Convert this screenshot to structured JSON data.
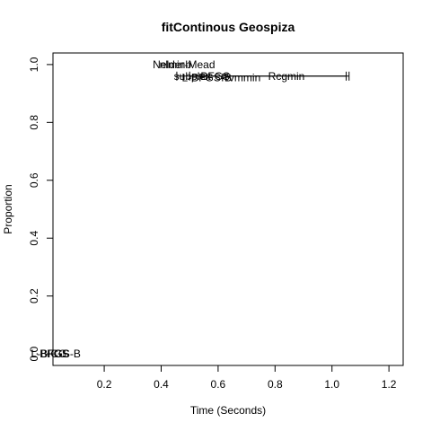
{
  "chart_data": {
    "type": "scatter",
    "title": "fitContinous Geospiza",
    "xlabel": "Time (Seconds)",
    "ylabel": "Proportion",
    "xlim": [
      0.02,
      1.25
    ],
    "ylim": [
      -0.04,
      1.04
    ],
    "xticks": [
      "0.2",
      "0.4",
      "0.6",
      "0.8",
      "1.0",
      "1.2"
    ],
    "yticks": [
      "0.0",
      "0.2",
      "0.4",
      "0.6",
      "0.8",
      "1.0"
    ],
    "xtick_values": [
      0.2,
      0.4,
      0.6,
      0.8,
      1.0,
      1.2
    ],
    "ytick_values": [
      0.0,
      0.2,
      0.4,
      0.6,
      0.8,
      1.0
    ],
    "grid": false,
    "legend": null,
    "points": [
      {
        "label": "BFGS",
        "x": 0.025,
        "y": 0.0
      },
      {
        "label": "CG",
        "x": 0.04,
        "y": 0.0
      },
      {
        "label": "L-BFGS-B",
        "x": 0.03,
        "y": 0.0
      },
      {
        "label": "nlminb",
        "x": 0.45,
        "y": 1.0
      },
      {
        "label": "Nelder-Mead",
        "x": 0.48,
        "y": 1.0
      },
      {
        "label": "subplex",
        "x": 0.51,
        "y": 0.96
      },
      {
        "label": "L-BFGS-B",
        "x": 0.56,
        "y": 0.955
      },
      {
        "label": "BFGS",
        "x": 0.59,
        "y": 0.96
      },
      {
        "label": "Rvmmin",
        "x": 0.68,
        "y": 0.955
      },
      {
        "label": "Rcgmin",
        "x": 0.84,
        "y": 0.96
      }
    ],
    "error_bars": [
      {
        "y": 0.96,
        "x_low": 0.455,
        "x_high": 1.05
      },
      {
        "y": 0.96,
        "x_low": 0.5,
        "x_high": 1.06
      }
    ]
  }
}
